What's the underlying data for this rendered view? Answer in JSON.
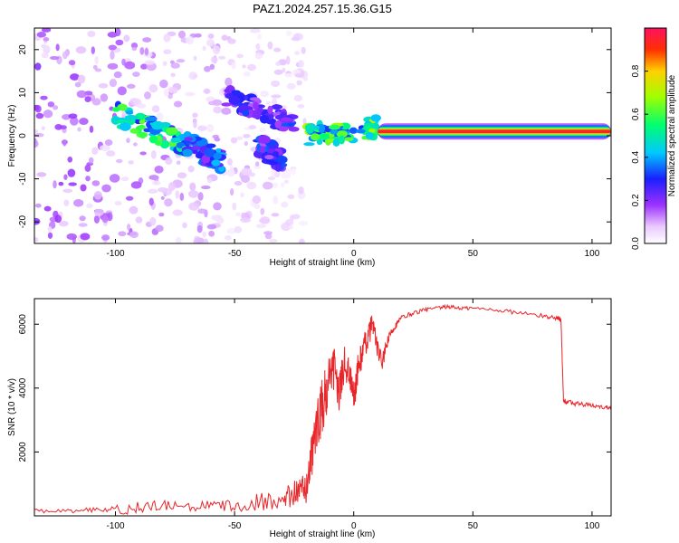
{
  "title": "PAZ1.2024.257.15.36.G15",
  "chart_data": [
    {
      "type": "heatmap",
      "xlabel": "Height of straight line (km)",
      "ylabel": "Frequency (Hz)",
      "xlim": [
        -134,
        108
      ],
      "ylim": [
        -25,
        25
      ],
      "xticks": [
        -100,
        -50,
        0,
        50,
        100
      ],
      "yticks": [
        -20,
        -10,
        0,
        10,
        20
      ],
      "colorbar": {
        "label": "Normalized spectral amplitude",
        "range": [
          0,
          1
        ],
        "ticks": [
          "0.0",
          "0.2",
          "0.4",
          "0.6",
          "0.8"
        ]
      },
      "features": [
        {
          "name": "",
          "kind": "noise",
          "x": [
            -134,
            -20
          ],
          "y": [
            -25,
            25
          ],
          "amplitude": 0.15
        },
        {
          "name": "",
          "kind": "ridge",
          "x": [
            -100,
            -70
          ],
          "y": [
            5,
            -2
          ],
          "amplitude": 0.45
        },
        {
          "name": "",
          "kind": "ridge",
          "x": [
            -70,
            -55
          ],
          "y": [
            -2,
            -6
          ],
          "amplitude": 0.3
        },
        {
          "name": "",
          "kind": "ridge",
          "x": [
            -55,
            -25
          ],
          "y": [
            9,
            3
          ],
          "amplitude": 0.25
        },
        {
          "name": "",
          "kind": "ridge",
          "x": [
            -40,
            -30
          ],
          "y": [
            -2,
            -6
          ],
          "amplitude": 0.25
        },
        {
          "name": "",
          "kind": "ridge",
          "x": [
            -20,
            10
          ],
          "y": [
            0,
            2
          ],
          "amplitude": 0.5
        },
        {
          "name": "",
          "kind": "band",
          "x": [
            10,
            108
          ],
          "y": [
            1,
            1
          ],
          "amplitude": 0.95
        }
      ]
    },
    {
      "type": "line",
      "xlabel": "Height of straight line (km)",
      "ylabel": "SNR (10 * v/v)",
      "xlim": [
        -134,
        108
      ],
      "ylim": [
        0,
        6800
      ],
      "xticks": [
        -100,
        -50,
        0,
        50,
        100
      ],
      "yticks": [
        2000,
        4000,
        6000
      ],
      "series": [
        {
          "color": "#e8262a",
          "x": [
            -134,
            -120,
            -110,
            -100,
            -90,
            -80,
            -70,
            -60,
            -50,
            -40,
            -30,
            -25,
            -22,
            -20,
            -18,
            -16,
            -14,
            -12,
            -10,
            -8,
            -6,
            -4,
            -2,
            0,
            2,
            4,
            6,
            8,
            10,
            12,
            14,
            16,
            18,
            20,
            25,
            30,
            35,
            40,
            45,
            50,
            60,
            70,
            80,
            85,
            87,
            88,
            90,
            95,
            100,
            105,
            108
          ],
          "y": [
            150,
            150,
            180,
            200,
            250,
            300,
            280,
            300,
            320,
            450,
            550,
            700,
            800,
            900,
            1600,
            2600,
            3200,
            3800,
            4200,
            4600,
            3800,
            4800,
            4500,
            3700,
            4700,
            5200,
            5600,
            6100,
            5200,
            4800,
            5400,
            5800,
            6000,
            6200,
            6350,
            6450,
            6500,
            6550,
            6500,
            6500,
            6450,
            6350,
            6250,
            6200,
            6150,
            3600,
            3550,
            3500,
            3450,
            3400,
            3400
          ],
          "noise": [
            60,
            60,
            80,
            150,
            200,
            180,
            160,
            180,
            200,
            300,
            350,
            400,
            450,
            500,
            700,
            900,
            900,
            900,
            800,
            700,
            600,
            600,
            500,
            500,
            500,
            450,
            400,
            350,
            300,
            250,
            200,
            120,
            100,
            80,
            70,
            70,
            60,
            60,
            60,
            60,
            60,
            70,
            70,
            70,
            80,
            80,
            80,
            80,
            60,
            60,
            60
          ]
        }
      ]
    }
  ]
}
